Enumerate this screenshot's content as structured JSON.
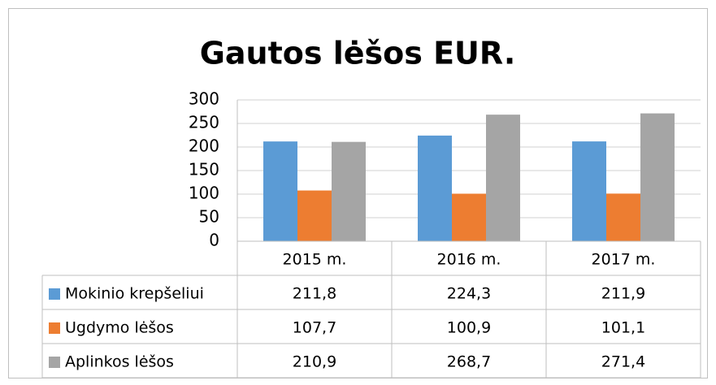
{
  "chart_data": {
    "type": "bar",
    "title": "Gautos lėšos EUR.",
    "categories": [
      "2015 m.",
      "2016 m.",
      "2017 m."
    ],
    "series": [
      {
        "name": "Mokinio krepšeliui",
        "color": "#5b9bd5",
        "values": [
          211.8,
          224.3,
          211.9
        ],
        "value_labels": [
          "211,8",
          "224,3",
          "211,9"
        ]
      },
      {
        "name": "Ugdymo lėšos",
        "color": "#ed7d31",
        "values": [
          107.7,
          100.9,
          101.1
        ],
        "value_labels": [
          "107,7",
          "100,9",
          "101,1"
        ]
      },
      {
        "name": "Aplinkos lėšos",
        "color": "#a5a5a5",
        "values": [
          210.9,
          268.7,
          271.4
        ],
        "value_labels": [
          "210,9",
          "268,7",
          "271,4"
        ]
      }
    ],
    "ylim": [
      0,
      300
    ],
    "yticks": [
      0,
      50,
      100,
      150,
      200,
      250,
      300
    ],
    "grid": true,
    "data_table": true
  }
}
